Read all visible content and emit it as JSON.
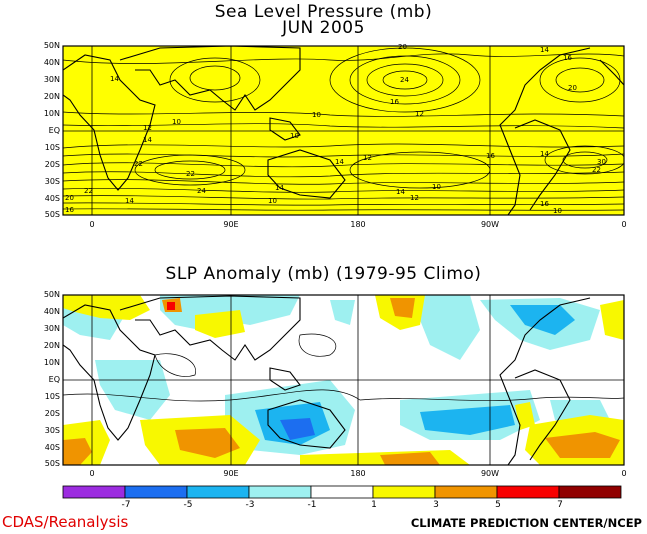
{
  "top_panel": {
    "title": "Sea Level Pressure (mb)",
    "subtitle": "JUN 2005",
    "contour_labels": [
      "20",
      "14",
      "16",
      "12",
      "10",
      "24",
      "22",
      "18",
      "30",
      "26"
    ]
  },
  "bottom_panel": {
    "title": "SLP Anomaly (mb) (1979-95 Climo)"
  },
  "lat_labels": [
    "50N",
    "40N",
    "30N",
    "20N",
    "10N",
    "EQ",
    "10S",
    "20S",
    "30S",
    "40S",
    "50S"
  ],
  "lon_labels": [
    "0",
    "90E",
    "180",
    "90W",
    "0"
  ],
  "colorbar": {
    "colors": [
      "#9c2ce0",
      "#1c6ef0",
      "#1cb4f0",
      "#9ef0f0",
      "#ffffff",
      "#f8f800",
      "#f09400",
      "#f80000",
      "#900000"
    ],
    "labels": [
      "-7",
      "-5",
      "-3",
      "-1",
      "1",
      "3",
      "5",
      "7"
    ]
  },
  "footer": {
    "left": "CDAS/Reanalysis",
    "right": "CLIMATE PREDICTION CENTER/NCEP"
  },
  "colors": {
    "top_fill": "#ffff00",
    "footer_left": "#e00000"
  }
}
